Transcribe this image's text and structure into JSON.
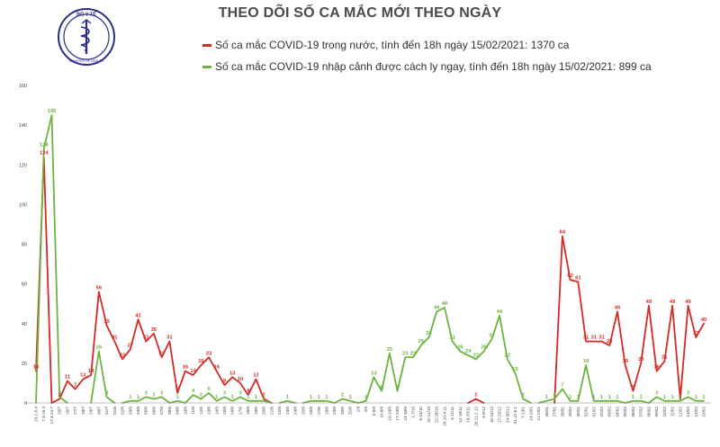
{
  "header": {
    "title": "THEO DÕI SỐ CA MẮC MỚI THEO NGÀY",
    "logo_text": "BỘ Y TẾ",
    "logo_subtext": "MINISTRY OF HEALTH"
  },
  "colors": {
    "domestic": "#d42a24",
    "imported": "#6cb33f",
    "logo": "#2b2f86"
  },
  "chart_data": {
    "type": "line",
    "ylim": [
      0,
      160
    ],
    "yticks": [
      0,
      20,
      40,
      60,
      80,
      100,
      120,
      140,
      160
    ],
    "grid": false,
    "categories": [
      "23.1-5.4",
      "7.3-16.4",
      "17.4-24.7",
      "25/7",
      "26/7",
      "27/7",
      "28/7",
      "29/7",
      "30/7",
      "31/7",
      "01/8",
      "02/8",
      "03/8",
      "04/8",
      "05/8",
      "06/8",
      "07/8",
      "08/8",
      "09/8",
      "10/8",
      "11/8",
      "12/8",
      "13/8",
      "14/8",
      "15/8",
      "16/8",
      "17/8",
      "18/8",
      "19/8",
      "20/8",
      "21/8",
      "22/8",
      "23/8",
      "24/8",
      "25/8",
      "26/8",
      "27/8",
      "28/8",
      "29/8",
      "30/8",
      "31/8",
      "1/9",
      "2/9",
      "3-9/9",
      "10-9/9",
      "10-10/9",
      "17-23/9",
      "24-30/9",
      "1-7/10",
      "8-14/10",
      "15-21/10",
      "22-28/10",
      "29.10-4.11",
      "5-11/11",
      "12-18/11",
      "19-25/11",
      "26.11-2.12",
      "3-9/12",
      "10-16/12",
      "17-23/12",
      "24-30/12",
      "31.12-6.1",
      "7-13/1",
      "14-20/1",
      "21-25/1",
      "26/01",
      "27/01",
      "28/01",
      "29/01",
      "30/01",
      "31/01",
      "01/02",
      "02/02",
      "03/02",
      "04/02",
      "05/02",
      "06/02",
      "07/02",
      "08/02",
      "09/02",
      "10/02",
      "11/02",
      "12/02",
      "13/02",
      "14/02",
      "15/02"
    ],
    "series": [
      {
        "name": "Số ca mắc COVID-19 trong nước, tính đến 18h ngày 15/02/2021: 1370 ca",
        "values": [
          16,
          124,
          0,
          2,
          11,
          7,
          12,
          14,
          56,
          39,
          31,
          22,
          27,
          42,
          31,
          35,
          23,
          31,
          5,
          16,
          14,
          19,
          23,
          16,
          9,
          13,
          10,
          4,
          12,
          2,
          0,
          0,
          0,
          0,
          0,
          0,
          0,
          0,
          0,
          0,
          0,
          0,
          0,
          0,
          0,
          0,
          0,
          0,
          0,
          0,
          0,
          0,
          0,
          0,
          0,
          0,
          2,
          0,
          0,
          0,
          0,
          0,
          0,
          0,
          0,
          0,
          0,
          84,
          62,
          61,
          31,
          31,
          31,
          29,
          46,
          19,
          6,
          20,
          49,
          16,
          21,
          49,
          2,
          49,
          33,
          40
        ]
      },
      {
        "name": "Số ca mắc COVID-19 nhập cảnh được cách ly ngay, tính đến 18h ngày 15/02/2021: 899 ca",
        "values": [
          0,
          128,
          145,
          3,
          0,
          0,
          0,
          0,
          26,
          3,
          0,
          0,
          1,
          1,
          3,
          2,
          3,
          0,
          1,
          0,
          4,
          2,
          5,
          1,
          3,
          1,
          3,
          1,
          1,
          1,
          0,
          0,
          1,
          0,
          0,
          1,
          1,
          1,
          0,
          2,
          1,
          0,
          1,
          13,
          6,
          25,
          6,
          23,
          23,
          29,
          33,
          46,
          48,
          31,
          26,
          24,
          22,
          26,
          32,
          44,
          22,
          15,
          2,
          0,
          0,
          1,
          2,
          7,
          1,
          1,
          19,
          1,
          1,
          1,
          1,
          0,
          1,
          1,
          0,
          3,
          1,
          1,
          1,
          3,
          1,
          1
        ]
      }
    ],
    "value_labels_shown": true
  }
}
